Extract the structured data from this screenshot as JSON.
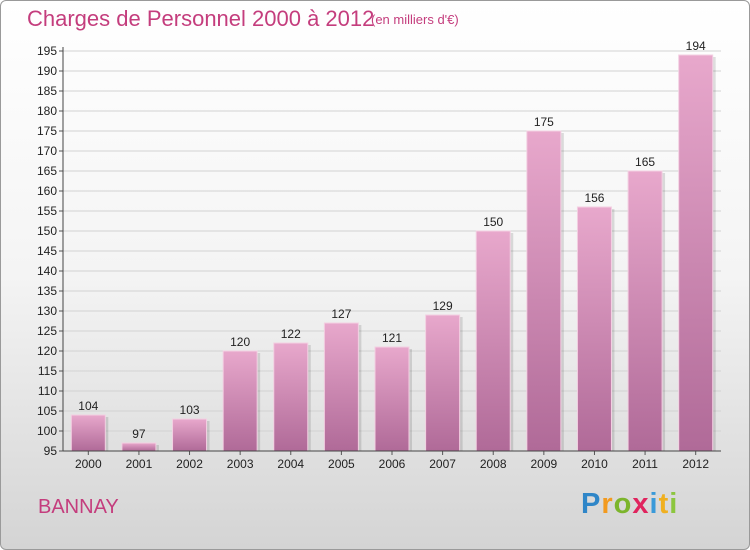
{
  "title": "Charges de Personnel 2000 à 2012",
  "unit": "(en milliers d'€)",
  "city": "BANNAY",
  "logo": {
    "p": "P",
    "r": "r",
    "o": "o",
    "x": "x",
    "i": "i",
    "t": "t",
    "i2": "i"
  },
  "colors": {
    "accent": "#c43d7d",
    "bar_top": "#e8a8cc",
    "bar_bottom": "#b06a98"
  },
  "chart_data": {
    "type": "bar",
    "categories": [
      "2000",
      "2001",
      "2002",
      "2003",
      "2004",
      "2005",
      "2006",
      "2007",
      "2008",
      "2009",
      "2010",
      "2011",
      "2012"
    ],
    "values": [
      104,
      97,
      103,
      120,
      122,
      127,
      121,
      129,
      150,
      175,
      156,
      165,
      194
    ],
    "ylim": [
      95,
      195
    ],
    "yticks": [
      95,
      100,
      105,
      110,
      115,
      120,
      125,
      130,
      135,
      140,
      145,
      150,
      155,
      160,
      165,
      170,
      175,
      180,
      185,
      190,
      195
    ],
    "grid": true
  }
}
